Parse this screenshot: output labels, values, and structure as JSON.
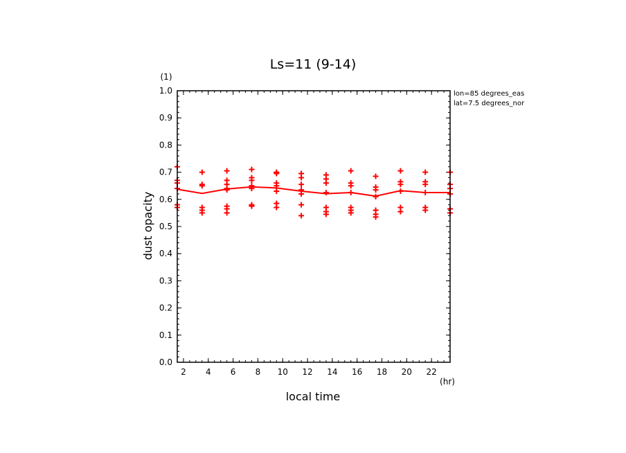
{
  "chart_data": {
    "type": "scatter",
    "title": "Ls=11 (9-14)",
    "xlabel": "local time",
    "ylabel": "dust opacity",
    "x_unit": "(hr)",
    "y_unit": "(1)",
    "xlim": [
      1.5,
      23.5
    ],
    "ylim": [
      0.0,
      1.0
    ],
    "x_ticks": [
      2,
      4,
      6,
      8,
      10,
      12,
      14,
      16,
      18,
      20,
      22
    ],
    "y_ticks": [
      0.0,
      0.1,
      0.2,
      0.3,
      0.4,
      0.5,
      0.6,
      0.7,
      0.8,
      0.9,
      1.0
    ],
    "y_tick_labels": [
      "0.0",
      "0.1",
      "0.2",
      "0.3",
      "0.4",
      "0.5",
      "0.6",
      "0.7",
      "0.8",
      "0.9",
      "1.0"
    ],
    "annotations": [
      "lon=85 degrees_eas",
      "lat=7.5 degrees_nor"
    ],
    "color": "#ff0000",
    "series": [
      {
        "style": "markers",
        "points": [
          [
            1.5,
            0.72
          ],
          [
            1.5,
            0.67
          ],
          [
            1.5,
            0.66
          ],
          [
            1.5,
            0.64
          ],
          [
            1.5,
            0.58
          ],
          [
            1.5,
            0.57
          ],
          [
            3.5,
            0.7
          ],
          [
            3.5,
            0.655
          ],
          [
            3.5,
            0.65
          ],
          [
            3.5,
            0.57
          ],
          [
            3.5,
            0.56
          ],
          [
            3.5,
            0.55
          ],
          [
            5.5,
            0.705
          ],
          [
            5.5,
            0.67
          ],
          [
            5.5,
            0.655
          ],
          [
            5.5,
            0.64
          ],
          [
            5.5,
            0.635
          ],
          [
            5.5,
            0.575
          ],
          [
            5.5,
            0.565
          ],
          [
            5.5,
            0.55
          ],
          [
            7.5,
            0.71
          ],
          [
            7.5,
            0.68
          ],
          [
            7.5,
            0.67
          ],
          [
            7.5,
            0.65
          ],
          [
            7.5,
            0.64
          ],
          [
            7.5,
            0.58
          ],
          [
            7.5,
            0.575
          ],
          [
            9.5,
            0.7
          ],
          [
            9.5,
            0.695
          ],
          [
            9.5,
            0.66
          ],
          [
            9.5,
            0.65
          ],
          [
            9.5,
            0.63
          ],
          [
            9.5,
            0.585
          ],
          [
            9.5,
            0.57
          ],
          [
            11.5,
            0.695
          ],
          [
            11.5,
            0.68
          ],
          [
            11.5,
            0.655
          ],
          [
            11.5,
            0.635
          ],
          [
            11.5,
            0.62
          ],
          [
            11.5,
            0.58
          ],
          [
            11.5,
            0.54
          ],
          [
            13.5,
            0.69
          ],
          [
            13.5,
            0.675
          ],
          [
            13.5,
            0.66
          ],
          [
            13.5,
            0.625
          ],
          [
            13.5,
            0.57
          ],
          [
            13.5,
            0.555
          ],
          [
            13.5,
            0.545
          ],
          [
            15.5,
            0.705
          ],
          [
            15.5,
            0.66
          ],
          [
            15.5,
            0.65
          ],
          [
            15.5,
            0.625
          ],
          [
            15.5,
            0.57
          ],
          [
            15.5,
            0.56
          ],
          [
            15.5,
            0.55
          ],
          [
            17.5,
            0.685
          ],
          [
            17.5,
            0.645
          ],
          [
            17.5,
            0.635
          ],
          [
            17.5,
            0.61
          ],
          [
            17.5,
            0.56
          ],
          [
            17.5,
            0.545
          ],
          [
            17.5,
            0.535
          ],
          [
            19.5,
            0.705
          ],
          [
            19.5,
            0.665
          ],
          [
            19.5,
            0.655
          ],
          [
            19.5,
            0.63
          ],
          [
            19.5,
            0.57
          ],
          [
            19.5,
            0.555
          ],
          [
            21.5,
            0.7
          ],
          [
            21.5,
            0.665
          ],
          [
            21.5,
            0.655
          ],
          [
            21.5,
            0.625
          ],
          [
            21.5,
            0.57
          ],
          [
            21.5,
            0.56
          ],
          [
            23.5,
            0.7
          ],
          [
            23.5,
            0.655
          ],
          [
            23.5,
            0.64
          ],
          [
            23.5,
            0.62
          ],
          [
            23.5,
            0.565
          ],
          [
            23.5,
            0.55
          ]
        ]
      },
      {
        "style": "line",
        "x": [
          1.5,
          3.5,
          5.5,
          7.5,
          9.5,
          11.5,
          13.5,
          15.5,
          17.5,
          19.5,
          21.5,
          23.5
        ],
        "values": [
          0.637,
          0.622,
          0.638,
          0.646,
          0.642,
          0.63,
          0.621,
          0.625,
          0.612,
          0.632,
          0.625,
          0.625
        ]
      }
    ]
  }
}
